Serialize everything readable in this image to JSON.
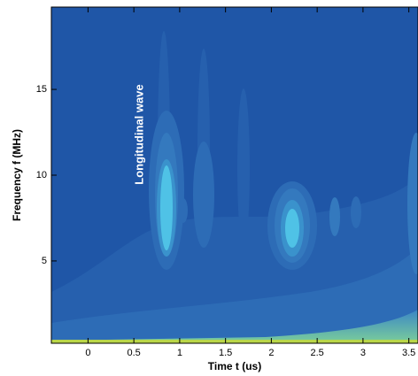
{
  "chart_data": {
    "type": "contour",
    "x_label": "Time t (us)",
    "y_label": "Frequency f (MHz)",
    "annotation": "Longitudinal wave",
    "xlim": [
      -0.4,
      3.6
    ],
    "ylim": [
      0.2,
      19.8
    ],
    "xticks": [
      0,
      0.5,
      1,
      1.5,
      2,
      2.5,
      3,
      3.5
    ],
    "yticks": [
      5,
      10,
      15
    ]
  }
}
